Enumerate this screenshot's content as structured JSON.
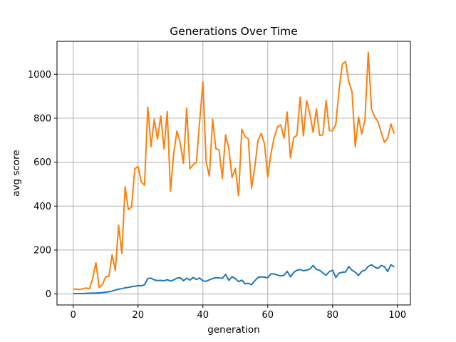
{
  "chart_data": {
    "type": "line",
    "title": "Generations Over Time",
    "xlabel": "generation",
    "ylabel": "avg score",
    "xlim": [
      -5,
      104
    ],
    "ylim": [
      -50,
      1150
    ],
    "xticks": [
      0,
      20,
      40,
      60,
      80,
      100
    ],
    "yticks": [
      0,
      200,
      400,
      600,
      800,
      1000
    ],
    "grid": true,
    "legend": "none",
    "series": [
      {
        "color": "#1f77b4",
        "x": [
          0,
          1,
          2,
          3,
          4,
          5,
          6,
          7,
          8,
          9,
          10,
          11,
          12,
          13,
          14,
          15,
          16,
          17,
          18,
          19,
          20,
          21,
          22,
          23,
          24,
          25,
          26,
          27,
          28,
          29,
          30,
          31,
          32,
          33,
          34,
          35,
          36,
          37,
          38,
          39,
          40,
          41,
          42,
          43,
          44,
          45,
          46,
          47,
          48,
          49,
          50,
          51,
          52,
          53,
          54,
          55,
          56,
          57,
          58,
          59,
          60,
          61,
          62,
          63,
          64,
          65,
          66,
          67,
          68,
          69,
          70,
          71,
          72,
          73,
          74,
          75,
          76,
          77,
          78,
          79,
          80,
          81,
          82,
          83,
          84,
          85,
          86,
          87,
          88,
          89,
          90,
          91,
          92,
          93,
          94,
          95,
          96,
          97,
          98,
          99
        ],
        "values": [
          2,
          2,
          2,
          2,
          3,
          3,
          4,
          4,
          5,
          6,
          8,
          10,
          13,
          18,
          22,
          24,
          28,
          30,
          33,
          35,
          38,
          37,
          42,
          70,
          72,
          64,
          61,
          62,
          60,
          65,
          59,
          64,
          72,
          74,
          60,
          72,
          63,
          75,
          66,
          73,
          59,
          58,
          64,
          70,
          74,
          73,
          71,
          89,
          62,
          79,
          70,
          56,
          63,
          46,
          49,
          42,
          60,
          75,
          78,
          76,
          74,
          92,
          91,
          86,
          82,
          85,
          103,
          78,
          98,
          108,
          111,
          106,
          108,
          113,
          130,
          112,
          108,
          96,
          85,
          102,
          108,
          75,
          95,
          99,
          100,
          125,
          108,
          99,
          84,
          103,
          108,
          125,
          133,
          123,
          116,
          130,
          124,
          102,
          133,
          123
        ]
      },
      {
        "color": "#ff7f0e",
        "x": [
          0,
          1,
          2,
          3,
          4,
          5,
          6,
          7,
          8,
          9,
          10,
          11,
          12,
          13,
          14,
          15,
          16,
          17,
          18,
          19,
          20,
          21,
          22,
          23,
          24,
          25,
          26,
          27,
          28,
          29,
          30,
          31,
          32,
          33,
          34,
          35,
          36,
          37,
          38,
          39,
          40,
          41,
          42,
          43,
          44,
          45,
          46,
          47,
          48,
          49,
          50,
          51,
          52,
          53,
          54,
          55,
          56,
          57,
          58,
          59,
          60,
          61,
          62,
          63,
          64,
          65,
          66,
          67,
          68,
          69,
          70,
          71,
          72,
          73,
          74,
          75,
          76,
          77,
          78,
          79,
          80,
          81,
          82,
          83,
          84,
          85,
          86,
          87,
          88,
          89,
          90,
          91,
          92,
          93,
          94,
          95,
          96,
          97,
          98,
          99
        ],
        "values": [
          22,
          22,
          20,
          24,
          27,
          24,
          70,
          142,
          30,
          42,
          78,
          80,
          178,
          108,
          312,
          185,
          488,
          385,
          395,
          570,
          580,
          510,
          495,
          850,
          670,
          795,
          705,
          810,
          660,
          830,
          468,
          640,
          742,
          688,
          595,
          846,
          570,
          588,
          600,
          785,
          965,
          600,
          536,
          795,
          662,
          655,
          526,
          724,
          662,
          530,
          572,
          448,
          750,
          717,
          706,
          482,
          577,
          700,
          731,
          682,
          532,
          640,
          713,
          760,
          770,
          710,
          828,
          620,
          712,
          722,
          896,
          720,
          880,
          820,
          736,
          842,
          722,
          724,
          880,
          744,
          742,
          772,
          930,
          1046,
          1058,
          966,
          920,
          670,
          805,
          728,
          795,
          1100,
          842,
          806,
          784,
          736,
          690,
          710,
          774,
          730
        ]
      }
    ]
  }
}
